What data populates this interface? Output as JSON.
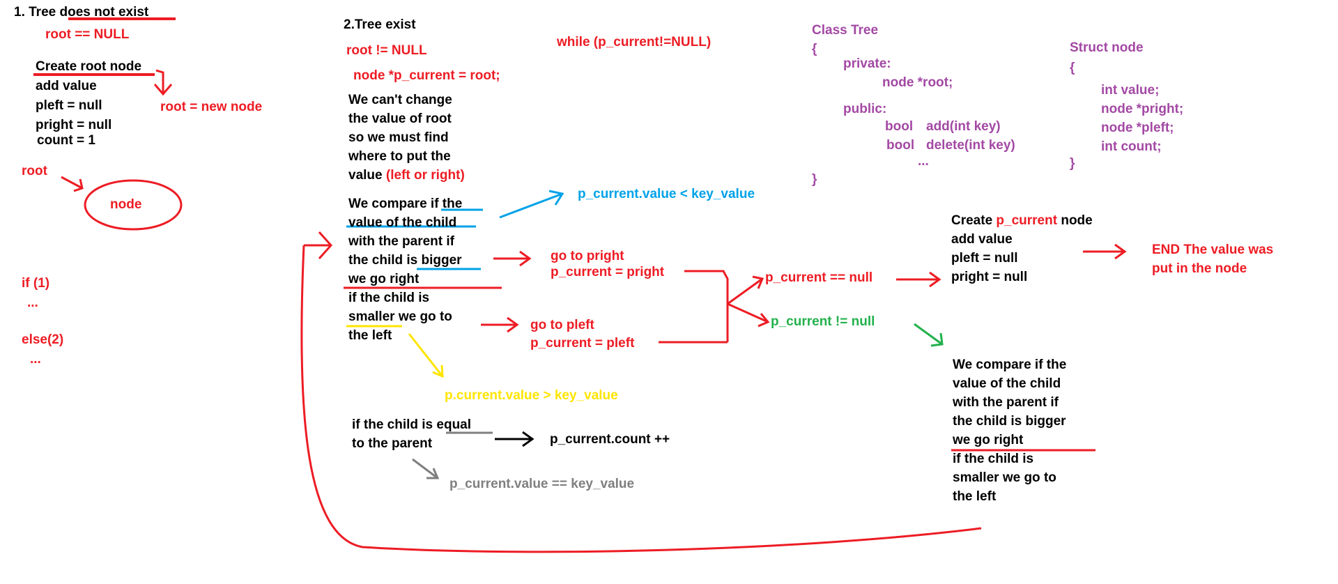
{
  "colors": {
    "red": "#ed1c24",
    "blue": "#00a2e8",
    "green": "#22b14c",
    "yellow": "#ffe500",
    "gray": "#7f7f7f",
    "purple": "#a349a4",
    "black": "#000000"
  },
  "section1": {
    "heading_prefix": "1. Tree ",
    "heading_underlined": "does not exist",
    "condition": "root == NULL",
    "create_root_node": "Create root node",
    "steps": [
      "add value",
      "pleft = null",
      "pright = null",
      "count = 1"
    ],
    "assignment": "root = new node",
    "root_label": "root",
    "node_label": "node",
    "if_label": "if (1)",
    "if_dots": "...",
    "else_label": "else(2)",
    "else_dots": "..."
  },
  "section2": {
    "heading": "2.Tree exist",
    "condition": "root != NULL",
    "pointer_init": "node *p_current = root;",
    "explain_lines": [
      "We can't change",
      "the value of root",
      "so we must find",
      "where to put the"
    ],
    "explain_last_prefix": "value ",
    "explain_last_colored": "(left or right)",
    "compare_lines": [
      "We compare if the",
      "value of the child",
      "with the parent if",
      "the child is bigger",
      "we go right",
      "if the child is",
      "smaller we go to",
      "the left"
    ],
    "while_loop": "while (p_current!=NULL)",
    "less_condition": "p_current.value < key_value",
    "go_right": [
      "go to pright",
      "p_current = pright"
    ],
    "go_left": [
      "go to pleft",
      "p_current = pleft"
    ],
    "greater_condition": "p.current.value > key_value",
    "equal_lines": [
      "if the child is equal",
      "to the parent"
    ],
    "count_increment": "p_current.count ++",
    "equal_condition": "p_current.value == key_value",
    "null_check": "p_current == null",
    "not_null_check": "p_current != null",
    "create_prefix": "Create ",
    "create_colored": "p_current",
    "create_suffix": " node",
    "create_steps": [
      "add value",
      "pleft = null",
      "pright = null"
    ],
    "end_lines": [
      "END The value was",
      "put in the node"
    ],
    "repeat_lines": [
      "We compare if the",
      "value of the child",
      "with the parent if",
      "the child is bigger",
      "we go right",
      "if the child is",
      "smaller we go to",
      "the left"
    ]
  },
  "class_tree": {
    "lines": [
      "Class Tree",
      "{",
      "private:",
      "node *root;",
      "public:",
      "bool",
      "add(int key)",
      "bool",
      "delete(int key)",
      "...",
      "}"
    ]
  },
  "struct_node": {
    "lines": [
      "Struct node",
      "{",
      "int value;",
      "node *pright;",
      "node *pleft;",
      "int count;",
      "}"
    ]
  }
}
